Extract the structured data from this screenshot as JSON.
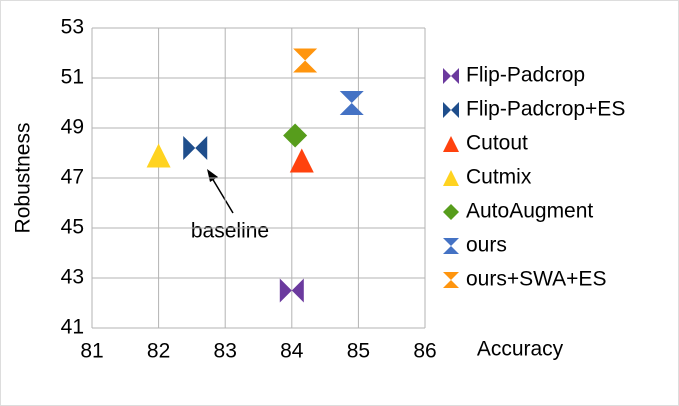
{
  "chart_data": {
    "type": "scatter",
    "x_label": "Accuracy",
    "y_label": "Robustness",
    "xlim": [
      81,
      86
    ],
    "xticks": [
      81,
      82,
      83,
      84,
      85,
      86
    ],
    "ylim": [
      41,
      53
    ],
    "yticks": [
      41,
      43,
      45,
      47,
      49,
      51,
      53
    ],
    "grid": true,
    "legend": "right",
    "annotation": "baseline",
    "series": [
      {
        "name": "Flip-Padcrop",
        "color": "#6b3a9e",
        "marker": "bowtie",
        "x": [
          84.0
        ],
        "values": [
          42.5
        ]
      },
      {
        "name": "Flip-Padcrop+ES",
        "color": "#1f4e8c",
        "marker": "bowtie",
        "x": [
          82.55
        ],
        "values": [
          48.2
        ]
      },
      {
        "name": "Cutout",
        "color": "#ff420e",
        "marker": "triangle",
        "x": [
          84.15
        ],
        "values": [
          47.7
        ]
      },
      {
        "name": "Cutmix",
        "color": "#ffd320",
        "marker": "triangle",
        "x": [
          82.0
        ],
        "values": [
          47.9
        ]
      },
      {
        "name": "AutoAugment",
        "color": "#579d1c",
        "marker": "diamond",
        "x": [
          84.05
        ],
        "values": [
          48.7
        ]
      },
      {
        "name": "ours",
        "color": "#4472c4",
        "marker": "hourglass",
        "x": [
          84.9
        ],
        "values": [
          50.0
        ]
      },
      {
        "name": "ours+SWA+ES",
        "color": "#ff950e",
        "marker": "hourglass",
        "x": [
          84.2
        ],
        "values": [
          51.7
        ]
      }
    ]
  }
}
